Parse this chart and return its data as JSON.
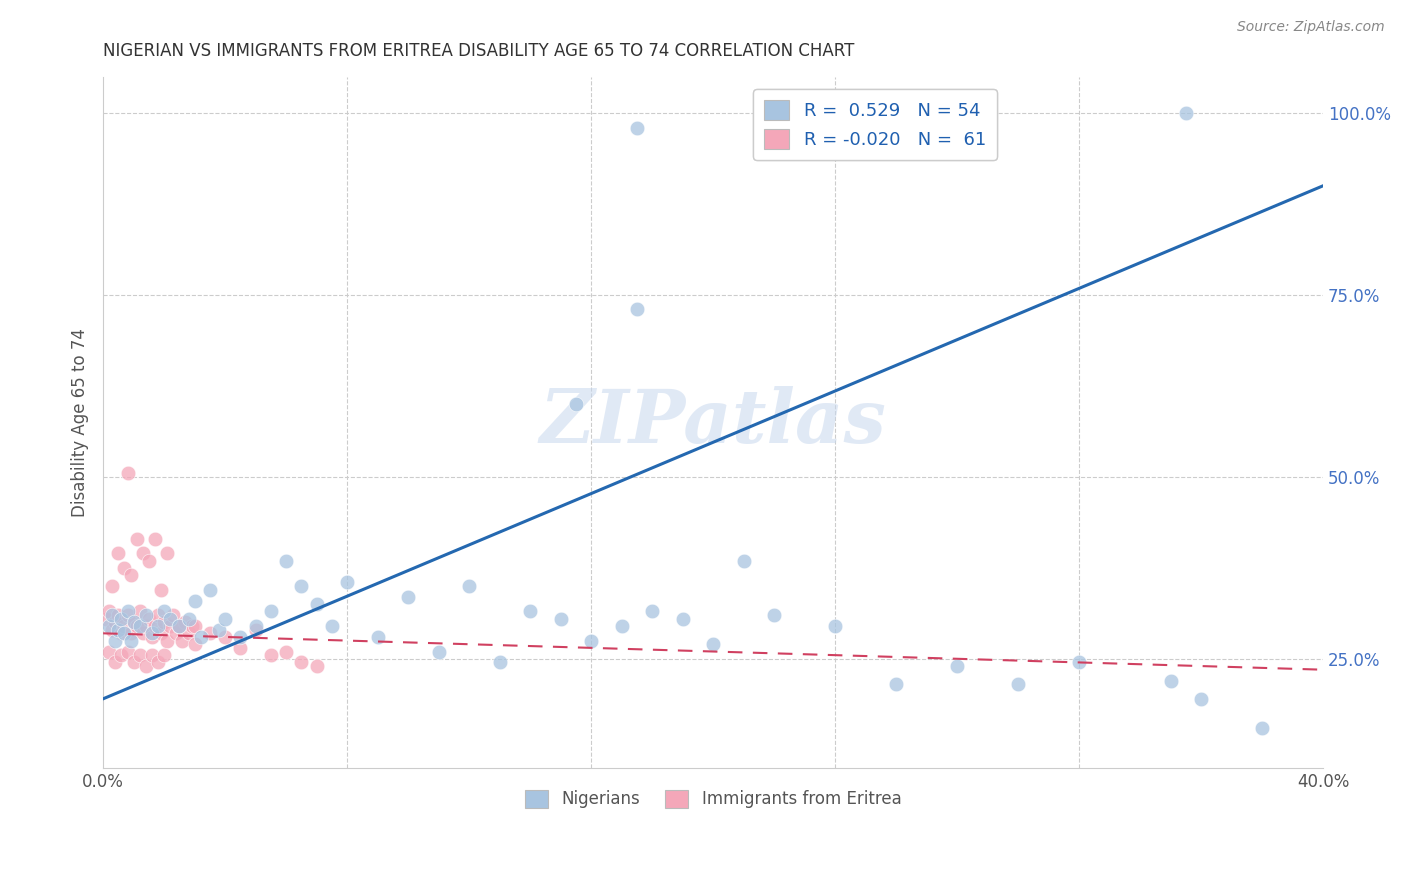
{
  "title": "NIGERIAN VS IMMIGRANTS FROM ERITREA DISABILITY AGE 65 TO 74 CORRELATION CHART",
  "source": "Source: ZipAtlas.com",
  "ylabel": "Disability Age 65 to 74",
  "xlim": [
    0.0,
    0.4
  ],
  "ylim": [
    0.1,
    1.05
  ],
  "xticks": [
    0.0,
    0.08,
    0.16,
    0.24,
    0.32,
    0.4
  ],
  "xticklabels": [
    "0.0%",
    "",
    "",
    "",
    "",
    "40.0%"
  ],
  "yticks_right": [
    0.25,
    0.5,
    0.75,
    1.0
  ],
  "yticklabels_right": [
    "25.0%",
    "50.0%",
    "75.0%",
    "100.0%"
  ],
  "legend_R_blue": "0.529",
  "legend_N_blue": "54",
  "legend_R_pink": "-0.020",
  "legend_N_pink": "61",
  "blue_color": "#a8c4e0",
  "pink_color": "#f4a7b9",
  "trend_blue_color": "#2468b0",
  "trend_pink_color": "#d04060",
  "watermark": "ZIPatlas",
  "background_color": "#ffffff",
  "grid_color": "#cccccc",
  "trend_blue_x0": 0.0,
  "trend_blue_y0": 0.195,
  "trend_blue_x1": 0.4,
  "trend_blue_y1": 0.9,
  "trend_pink_x0": 0.0,
  "trend_pink_y0": 0.285,
  "trend_pink_x1": 0.4,
  "trend_pink_y1": 0.235,
  "nigerian_x": [
    0.002,
    0.003,
    0.004,
    0.005,
    0.006,
    0.007,
    0.008,
    0.009,
    0.01,
    0.012,
    0.014,
    0.016,
    0.018,
    0.02,
    0.022,
    0.025,
    0.028,
    0.03,
    0.032,
    0.035,
    0.038,
    0.04,
    0.045,
    0.05,
    0.055,
    0.06,
    0.065,
    0.07,
    0.075,
    0.08,
    0.09,
    0.1,
    0.11,
    0.12,
    0.13,
    0.14,
    0.15,
    0.16,
    0.17,
    0.18,
    0.19,
    0.2,
    0.21,
    0.22,
    0.24,
    0.26,
    0.28,
    0.3,
    0.32,
    0.35,
    0.155,
    0.175,
    0.36,
    0.38
  ],
  "nigerian_y": [
    0.295,
    0.31,
    0.275,
    0.29,
    0.305,
    0.285,
    0.315,
    0.275,
    0.3,
    0.295,
    0.31,
    0.285,
    0.295,
    0.315,
    0.305,
    0.295,
    0.305,
    0.33,
    0.28,
    0.345,
    0.29,
    0.305,
    0.28,
    0.295,
    0.315,
    0.385,
    0.35,
    0.325,
    0.295,
    0.355,
    0.28,
    0.335,
    0.26,
    0.35,
    0.245,
    0.315,
    0.305,
    0.275,
    0.295,
    0.315,
    0.305,
    0.27,
    0.385,
    0.31,
    0.295,
    0.215,
    0.24,
    0.215,
    0.245,
    0.22,
    0.6,
    0.73,
    0.195,
    0.155
  ],
  "eritrea_x": [
    0.001,
    0.002,
    0.003,
    0.004,
    0.005,
    0.006,
    0.007,
    0.008,
    0.009,
    0.01,
    0.011,
    0.012,
    0.013,
    0.014,
    0.015,
    0.016,
    0.017,
    0.018,
    0.019,
    0.02,
    0.021,
    0.022,
    0.023,
    0.024,
    0.025,
    0.026,
    0.027,
    0.028,
    0.029,
    0.03,
    0.003,
    0.005,
    0.007,
    0.009,
    0.011,
    0.013,
    0.015,
    0.017,
    0.019,
    0.021,
    0.002,
    0.004,
    0.006,
    0.008,
    0.01,
    0.012,
    0.014,
    0.016,
    0.018,
    0.02,
    0.025,
    0.03,
    0.035,
    0.04,
    0.045,
    0.05,
    0.055,
    0.06,
    0.065,
    0.07,
    0.008
  ],
  "eritrea_y": [
    0.305,
    0.315,
    0.29,
    0.3,
    0.31,
    0.285,
    0.295,
    0.31,
    0.285,
    0.3,
    0.295,
    0.315,
    0.285,
    0.295,
    0.305,
    0.28,
    0.295,
    0.31,
    0.285,
    0.3,
    0.275,
    0.295,
    0.31,
    0.285,
    0.295,
    0.275,
    0.3,
    0.285,
    0.295,
    0.27,
    0.35,
    0.395,
    0.375,
    0.365,
    0.415,
    0.395,
    0.385,
    0.415,
    0.345,
    0.395,
    0.26,
    0.245,
    0.255,
    0.26,
    0.245,
    0.255,
    0.24,
    0.255,
    0.245,
    0.255,
    0.295,
    0.295,
    0.285,
    0.28,
    0.265,
    0.29,
    0.255,
    0.26,
    0.245,
    0.24,
    0.505
  ]
}
